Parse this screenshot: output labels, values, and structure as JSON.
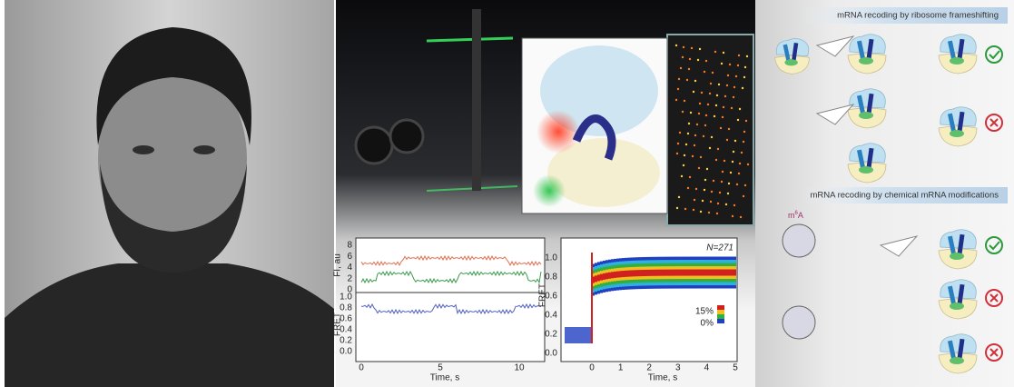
{
  "header_top": "mRNA recoding by ribosome frameshifting",
  "header_bottom": "mRNA recoding by chemical mRNA modifications",
  "modification_label": {
    "base": "m",
    "superscript": "6",
    "suffix": "A"
  },
  "plot_traces": {
    "y_label_top": "FI, au",
    "yticks_top": [
      "8",
      "6",
      "4",
      "2",
      "0"
    ],
    "y_label_bottom": "FRET",
    "yticks_bottom": [
      "1.0",
      "0.8",
      "0.6",
      "0.4",
      "0.2",
      "0.0"
    ],
    "xticks": [
      "0",
      "5",
      "10"
    ],
    "x_label": "Time, s"
  },
  "plot_histogram": {
    "y_label": "FRET",
    "yticks": [
      "1.0",
      "0.8",
      "0.6",
      "0.4",
      "0.2",
      "0.0"
    ],
    "xticks": [
      "0",
      "1",
      "2",
      "3",
      "4",
      "5"
    ],
    "x_label": "Time, s",
    "n_label": "N=271",
    "scale_max": "15%",
    "scale_min": "0%"
  }
}
